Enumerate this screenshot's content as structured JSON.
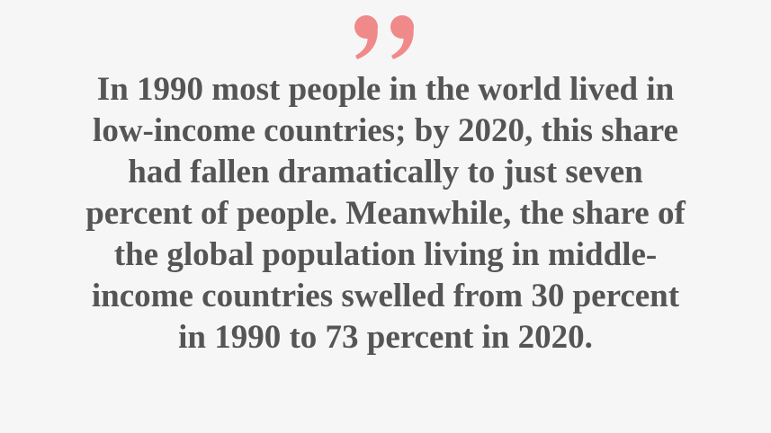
{
  "quote": {
    "lines": [
      "In 1990 most people in the world lived in",
      "low-income countries; by 2020, this share",
      "had fallen dramatically to just seven",
      "percent of people. Meanwhile, the share of",
      "the global population living in middle-",
      "income countries swelled from 30 percent",
      "in 1990 to 73 percent in 2020."
    ]
  }
}
